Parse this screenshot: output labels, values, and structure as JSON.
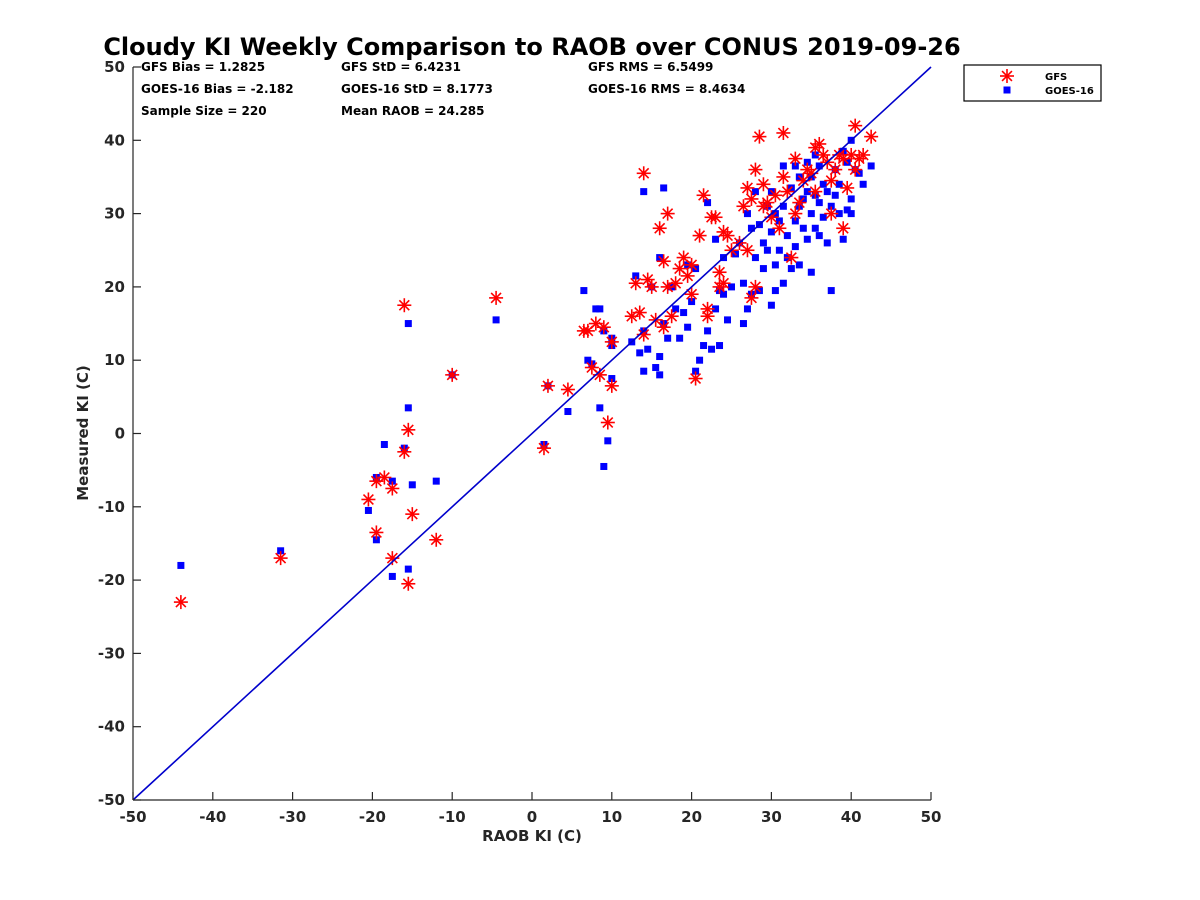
{
  "chart_data": {
    "type": "scatter",
    "title": "Cloudy KI Weekly Comparison to RAOB over CONUS 2019-09-26",
    "xlabel": "RAOB KI (C)",
    "ylabel": "Measured KI (C)",
    "xlim": [
      -50,
      50
    ],
    "ylim": [
      -50,
      50
    ],
    "x_ticks": [
      "-50",
      "-40",
      "-30",
      "-20",
      "-10",
      "0",
      "10",
      "20",
      "30",
      "40",
      "50"
    ],
    "y_ticks": [
      "-50",
      "-40",
      "-30",
      "-20",
      "-10",
      "0",
      "10",
      "20",
      "30",
      "40",
      "50"
    ],
    "grid": false,
    "legend_position": "outside-top-right",
    "reference_line": {
      "type": "one-to-one",
      "color": "#0000cc"
    },
    "stats": {
      "gfs_bias": "GFS Bias = 1.2825",
      "gfs_std": "GFS StD = 6.4231",
      "gfs_rms": "GFS RMS = 6.5499",
      "goes_bias": "GOES-16 Bias = -2.182",
      "goes_std": "GOES-16 StD = 8.1773",
      "goes_rms": "GOES-16 RMS = 8.4634",
      "sample_size": "Sample Size = 220",
      "mean_raob": "Mean RAOB = 24.285"
    },
    "series": [
      {
        "name": "GFS",
        "marker": "asterisk",
        "color": "#ff0000",
        "points": [
          [
            -44,
            -23
          ],
          [
            -31.5,
            -17
          ],
          [
            -20.5,
            -9
          ],
          [
            -19.5,
            -13.5
          ],
          [
            -19.5,
            -6.5
          ],
          [
            -18.5,
            -6
          ],
          [
            -17.5,
            -7.5
          ],
          [
            -17.5,
            -17
          ],
          [
            -16,
            17.5
          ],
          [
            -16,
            -2.5
          ],
          [
            -15.5,
            0.5
          ],
          [
            -15,
            -11
          ],
          [
            -15.5,
            -20.5
          ],
          [
            -12,
            -14.5
          ],
          [
            -10,
            8
          ],
          [
            -4.5,
            18.5
          ],
          [
            1.5,
            -2
          ],
          [
            2,
            6.5
          ],
          [
            4.5,
            6
          ],
          [
            6.5,
            14
          ],
          [
            7,
            14
          ],
          [
            7.5,
            9
          ],
          [
            8,
            15
          ],
          [
            8.5,
            8
          ],
          [
            9,
            14.5
          ],
          [
            9.5,
            1.5
          ],
          [
            10,
            12.5
          ],
          [
            10,
            6.5
          ],
          [
            12.5,
            16
          ],
          [
            13,
            20.5
          ],
          [
            13.5,
            16.5
          ],
          [
            14,
            35.5
          ],
          [
            14,
            13.5
          ],
          [
            14.5,
            21
          ],
          [
            15,
            20
          ],
          [
            15.5,
            15.5
          ],
          [
            16,
            28
          ],
          [
            16.5,
            23.5
          ],
          [
            16.5,
            14.5
          ],
          [
            17,
            30
          ],
          [
            17,
            20
          ],
          [
            17.5,
            16
          ],
          [
            18,
            20.5
          ],
          [
            18.5,
            22.5
          ],
          [
            19,
            24
          ],
          [
            19.5,
            21.5
          ],
          [
            20,
            23
          ],
          [
            20,
            19
          ],
          [
            20.5,
            7.5
          ],
          [
            21,
            27
          ],
          [
            21.5,
            32.5
          ],
          [
            22,
            17
          ],
          [
            22,
            16
          ],
          [
            22.5,
            29.5
          ],
          [
            23,
            29.5
          ],
          [
            23.5,
            22
          ],
          [
            23.5,
            20
          ],
          [
            24,
            27.5
          ],
          [
            24,
            20.5
          ],
          [
            24.5,
            27
          ],
          [
            25,
            25
          ],
          [
            26,
            26
          ],
          [
            26.5,
            31
          ],
          [
            27,
            33.5
          ],
          [
            27,
            25
          ],
          [
            27.5,
            32
          ],
          [
            27.5,
            18.5
          ],
          [
            28,
            36
          ],
          [
            28,
            20
          ],
          [
            28.5,
            40.5
          ],
          [
            29,
            34
          ],
          [
            29,
            31
          ],
          [
            29.5,
            31.5
          ],
          [
            30,
            29.5
          ],
          [
            30.5,
            32.5
          ],
          [
            31,
            28
          ],
          [
            31.5,
            41
          ],
          [
            31.5,
            35
          ],
          [
            32,
            33
          ],
          [
            32.5,
            24
          ],
          [
            33,
            37.5
          ],
          [
            33,
            30
          ],
          [
            33.5,
            31.5
          ],
          [
            34,
            34.5
          ],
          [
            34.5,
            36
          ],
          [
            35,
            35.5
          ],
          [
            35.5,
            39
          ],
          [
            35.5,
            33
          ],
          [
            36,
            39.5
          ],
          [
            36.5,
            38
          ],
          [
            37,
            37
          ],
          [
            37.5,
            34.5
          ],
          [
            37.5,
            30
          ],
          [
            38,
            36
          ],
          [
            38.5,
            38
          ],
          [
            39,
            37.5
          ],
          [
            39,
            28
          ],
          [
            39.5,
            33.5
          ],
          [
            40,
            38
          ],
          [
            40.5,
            42
          ],
          [
            40.5,
            36
          ],
          [
            41,
            37.5
          ],
          [
            41.5,
            38
          ],
          [
            42.5,
            40.5
          ]
        ]
      },
      {
        "name": "GOES-16",
        "marker": "square",
        "color": "#0000ff",
        "points": [
          [
            -44,
            -18
          ],
          [
            -31.5,
            -16
          ],
          [
            -20.5,
            -10.5
          ],
          [
            -19.5,
            -14.5
          ],
          [
            -19.5,
            -6
          ],
          [
            -18.5,
            -1.5
          ],
          [
            -17.5,
            -6.5
          ],
          [
            -17.5,
            -19.5
          ],
          [
            -16,
            -2
          ],
          [
            -15.5,
            15
          ],
          [
            -15.5,
            3.5
          ],
          [
            -15.5,
            -18.5
          ],
          [
            -15,
            -7
          ],
          [
            -12,
            -6.5
          ],
          [
            -10,
            8
          ],
          [
            -4.5,
            15.5
          ],
          [
            1.5,
            -1.5
          ],
          [
            2,
            6.5
          ],
          [
            4.5,
            3
          ],
          [
            6.5,
            19.5
          ],
          [
            7,
            10
          ],
          [
            7.5,
            9.5
          ],
          [
            8,
            17
          ],
          [
            8.5,
            3.5
          ],
          [
            8.5,
            17
          ],
          [
            9,
            -4.5
          ],
          [
            9,
            14
          ],
          [
            9.5,
            -1
          ],
          [
            10,
            13
          ],
          [
            10,
            12
          ],
          [
            10,
            7.5
          ],
          [
            12.5,
            12.5
          ],
          [
            13,
            21.5
          ],
          [
            13.5,
            11
          ],
          [
            14,
            33
          ],
          [
            14,
            14
          ],
          [
            14,
            8.5
          ],
          [
            14.5,
            11.5
          ],
          [
            15,
            20
          ],
          [
            15.5,
            9
          ],
          [
            16,
            24
          ],
          [
            16,
            10.5
          ],
          [
            16,
            8
          ],
          [
            16.5,
            33.5
          ],
          [
            16.5,
            15
          ],
          [
            17,
            13
          ],
          [
            17.5,
            20
          ],
          [
            18,
            17
          ],
          [
            18.5,
            13
          ],
          [
            19,
            16.5
          ],
          [
            19.5,
            23
          ],
          [
            19.5,
            14.5
          ],
          [
            20,
            18
          ],
          [
            20.5,
            22.5
          ],
          [
            20.5,
            8.5
          ],
          [
            21,
            10
          ],
          [
            21.5,
            12
          ],
          [
            22,
            31.5
          ],
          [
            22,
            14
          ],
          [
            22.5,
            11.5
          ],
          [
            23,
            26.5
          ],
          [
            23,
            17
          ],
          [
            23.5,
            19.5
          ],
          [
            23.5,
            12
          ],
          [
            24,
            24
          ],
          [
            24,
            19
          ],
          [
            24.5,
            15.5
          ],
          [
            25,
            20
          ],
          [
            25.5,
            24.5
          ],
          [
            26,
            26
          ],
          [
            26.5,
            20.5
          ],
          [
            26.5,
            15
          ],
          [
            27,
            30
          ],
          [
            27,
            17
          ],
          [
            27.5,
            28
          ],
          [
            27.5,
            19
          ],
          [
            28,
            33
          ],
          [
            28,
            24
          ],
          [
            28.5,
            28.5
          ],
          [
            28.5,
            19.5
          ],
          [
            29,
            26
          ],
          [
            29,
            22.5
          ],
          [
            29.5,
            31
          ],
          [
            29.5,
            25
          ],
          [
            30,
            33
          ],
          [
            30,
            27.5
          ],
          [
            30,
            17.5
          ],
          [
            30.5,
            30
          ],
          [
            30.5,
            23
          ],
          [
            30.5,
            19.5
          ],
          [
            31,
            29
          ],
          [
            31,
            25
          ],
          [
            31.5,
            36.5
          ],
          [
            31.5,
            31
          ],
          [
            31.5,
            20.5
          ],
          [
            32,
            27
          ],
          [
            32,
            24
          ],
          [
            32.5,
            33.5
          ],
          [
            32.5,
            22.5
          ],
          [
            33,
            36.5
          ],
          [
            33,
            29
          ],
          [
            33,
            25.5
          ],
          [
            33.5,
            35
          ],
          [
            33.5,
            31
          ],
          [
            33.5,
            23
          ],
          [
            34,
            32
          ],
          [
            34,
            28
          ],
          [
            34.5,
            37
          ],
          [
            34.5,
            33
          ],
          [
            34.5,
            26.5
          ],
          [
            35,
            35
          ],
          [
            35,
            30
          ],
          [
            35,
            22
          ],
          [
            35.5,
            38
          ],
          [
            35.5,
            32.5
          ],
          [
            35.5,
            28
          ],
          [
            36,
            36.5
          ],
          [
            36,
            31.5
          ],
          [
            36,
            27
          ],
          [
            36.5,
            34
          ],
          [
            36.5,
            29.5
          ],
          [
            37,
            33
          ],
          [
            37,
            26
          ],
          [
            37.5,
            31
          ],
          [
            37.5,
            19.5
          ],
          [
            38,
            36
          ],
          [
            38,
            32.5
          ],
          [
            38.5,
            34
          ],
          [
            38.5,
            30
          ],
          [
            39,
            38.5
          ],
          [
            39,
            26.5
          ],
          [
            39.5,
            37
          ],
          [
            39.5,
            30.5
          ],
          [
            40,
            40
          ],
          [
            40,
            32
          ],
          [
            40,
            30
          ],
          [
            40.5,
            36
          ],
          [
            41,
            35.5
          ],
          [
            41.5,
            34
          ],
          [
            42.5,
            36.5
          ]
        ]
      }
    ]
  }
}
